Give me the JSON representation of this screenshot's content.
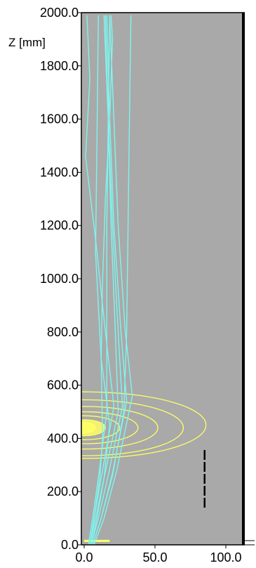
{
  "chart_data": {
    "type": "line",
    "title": "",
    "ylabel": "Z [mm]",
    "xlabel": "",
    "xlim": [
      0,
      100
    ],
    "ylim": [
      0,
      2000
    ],
    "x_ticks": [
      "0.0",
      "50.0",
      "100.0"
    ],
    "y_ticks": [
      "0.0",
      "200.0",
      "400.0",
      "600.0",
      "800.0",
      "1000.0",
      "1200.0",
      "1400.0",
      "1600.0",
      "1800.0",
      "2000.0"
    ],
    "grid": false,
    "colors": {
      "plot_background": "#a9a9a9",
      "trajectories": "#7ff5f0",
      "contours": "#ffff66",
      "frame": "#000000"
    },
    "trajectories": [
      {
        "x": [
          4,
          8,
          14,
          24,
          22,
          19,
          17,
          14
        ],
        "y": [
          0,
          100,
          250,
          500,
          800,
          1200,
          1600,
          1990
        ]
      },
      {
        "x": [
          5,
          10,
          17,
          27,
          24,
          20,
          17,
          15
        ],
        "y": [
          0,
          100,
          260,
          520,
          800,
          1200,
          1600,
          1990
        ]
      },
      {
        "x": [
          6,
          12,
          20,
          30,
          26,
          21,
          18,
          16
        ],
        "y": [
          0,
          100,
          270,
          540,
          800,
          1200,
          1600,
          1990
        ]
      },
      {
        "x": [
          7,
          14,
          23,
          34,
          29,
          24,
          21,
          18
        ],
        "y": [
          0,
          100,
          280,
          560,
          800,
          1200,
          1600,
          1990
        ]
      },
      {
        "x": [
          3,
          6,
          10,
          16,
          16,
          16,
          17,
          18
        ],
        "y": [
          0,
          100,
          250,
          500,
          800,
          1200,
          1600,
          1990
        ]
      },
      {
        "x": [
          4,
          7,
          12,
          21,
          15,
          8,
          1,
          4,
          2
        ],
        "y": [
          0,
          100,
          250,
          520,
          800,
          1150,
          1460,
          1750,
          1990
        ]
      },
      {
        "x": [
          6,
          12,
          20,
          28,
          30,
          31,
          32,
          33
        ],
        "y": [
          0,
          100,
          260,
          500,
          800,
          1200,
          1600,
          1990
        ]
      },
      {
        "x": [
          5,
          9,
          14,
          18,
          12,
          8,
          9,
          10
        ],
        "y": [
          0,
          100,
          250,
          450,
          700,
          1100,
          1500,
          1990
        ]
      },
      {
        "x": [
          4,
          7,
          11,
          13,
          12,
          13,
          15,
          18,
          20,
          19
        ],
        "y": [
          0,
          100,
          250,
          400,
          700,
          1000,
          1300,
          1600,
          1900,
          1990
        ]
      }
    ],
    "contours": [
      {
        "cx": 0,
        "cy": 440,
        "rx": 8,
        "ry": 20
      },
      {
        "cx": 0,
        "cy": 440,
        "rx": 15,
        "ry": 30
      },
      {
        "cx": 0,
        "cy": 440,
        "rx": 25,
        "ry": 45
      },
      {
        "cx": 0,
        "cy": 440,
        "rx": 38,
        "ry": 60
      },
      {
        "cx": 0,
        "cy": 440,
        "rx": 52,
        "ry": 80
      },
      {
        "cx": 0,
        "cy": 440,
        "rx": 70,
        "ry": 105
      },
      {
        "cx": 0,
        "cy": 450,
        "rx": 86,
        "ry": 125
      }
    ],
    "floor_blob": {
      "x": [
        0,
        18
      ],
      "y": 15
    },
    "dashed_marker": {
      "x": 85,
      "y": [
        140,
        360
      ]
    }
  }
}
